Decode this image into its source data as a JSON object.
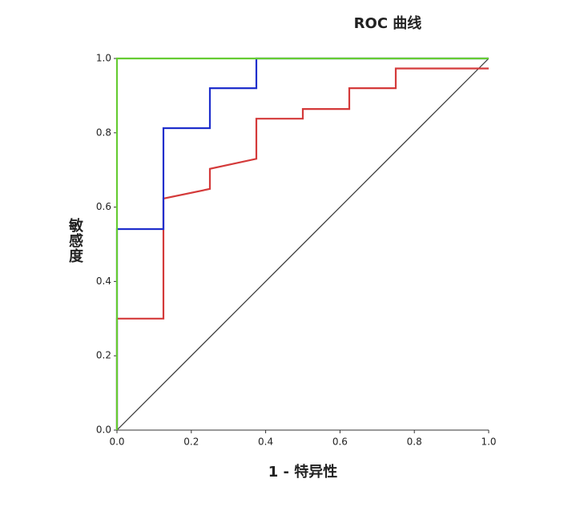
{
  "chart_data": {
    "type": "line",
    "title": "ROC 曲线",
    "x_label": "1 - 特异性",
    "y_label": "敏感度",
    "xlim": [
      0,
      1
    ],
    "ylim": [
      0,
      1
    ],
    "xticks": [
      {
        "value": 0,
        "label": "0.0"
      },
      0.2,
      0.4,
      0.6,
      0.8,
      {
        "value": 1,
        "label": "1.0"
      }
    ],
    "yticks": [
      {
        "value": 0,
        "label": "0.0"
      },
      0.2,
      0.4,
      0.6,
      0.8,
      {
        "value": 1,
        "label": "1.0"
      }
    ],
    "series": [
      {
        "color": "#333333",
        "x": [
          0,
          1
        ],
        "values": [
          0,
          1
        ]
      },
      {
        "color": "#d43a3a",
        "x": [
          0,
          0,
          0.125,
          0.125,
          0.25,
          0.25,
          0.375,
          0.375,
          0.5,
          0.5,
          0.625,
          0.625,
          0.75,
          0.75,
          1
        ],
        "values": [
          0,
          0.3,
          0.3,
          0.623,
          0.649,
          0.703,
          0.73,
          0.838,
          0.838,
          0.864,
          0.864,
          0.92,
          0.92,
          0.973,
          0.973
        ]
      },
      {
        "color": "#1f2fcc",
        "x": [
          0,
          0,
          0.125,
          0.125,
          0.25,
          0.25,
          0.375,
          0.375,
          1
        ],
        "values": [
          0,
          0.541,
          0.541,
          0.8125,
          0.8125,
          0.92,
          0.92,
          1,
          1
        ]
      },
      {
        "color": "#66cc33",
        "x": [
          0,
          0,
          1
        ],
        "values": [
          0,
          1,
          1
        ]
      }
    ]
  }
}
